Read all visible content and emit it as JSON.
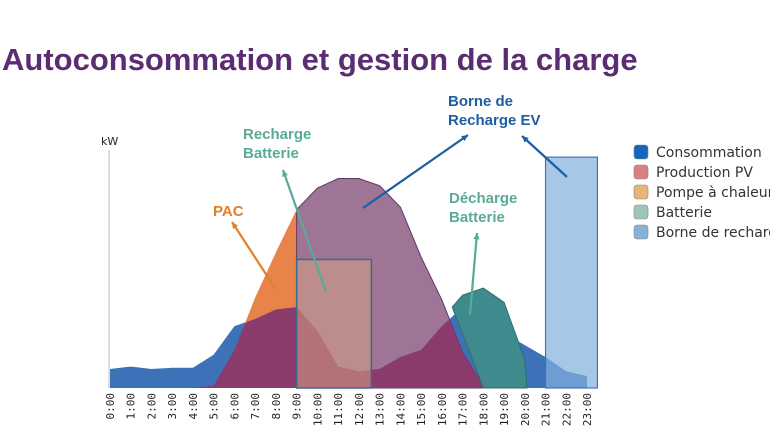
{
  "title": "Autoconsommation et gestion de la charge",
  "chart_data": {
    "type": "area",
    "ylabel": "kW",
    "xlabel": "",
    "ylim": [
      0,
      10
    ],
    "categories": [
      "0:00",
      "1:00",
      "2:00",
      "3:00",
      "4:00",
      "5:00",
      "6:00",
      "7:00",
      "8:00",
      "9:00",
      "10:00",
      "11:00",
      "12:00",
      "13:00",
      "14:00",
      "15:00",
      "16:00",
      "17:00",
      "18:00",
      "19:00",
      "20:00",
      "21:00",
      "22:00",
      "23:00"
    ],
    "series": [
      {
        "name": "Consommation",
        "color": "#3e72b8",
        "values": [
          0.8,
          0.9,
          0.8,
          0.85,
          0.85,
          1.4,
          2.6,
          2.9,
          3.3,
          3.4,
          2.4,
          0.9,
          0.7,
          0.8,
          1.3,
          1.6,
          2.6,
          3.4,
          3.2,
          2.3,
          1.8,
          1.3,
          0.7,
          0.5
        ]
      },
      {
        "name": "Production PV",
        "color": "#8b3a6c",
        "values": [
          0,
          0,
          0,
          0,
          0,
          0.1,
          1.6,
          3.8,
          5.7,
          7.5,
          8.4,
          8.8,
          8.8,
          8.5,
          7.6,
          5.5,
          3.7,
          1.5,
          0.1,
          0,
          0,
          0,
          0,
          0
        ]
      },
      {
        "name": "Pompe à chaleur",
        "color": "#e8834a",
        "range": [
          "6:30",
          "9:00"
        ]
      },
      {
        "name": "Batterie",
        "color": "#3f8a8c",
        "charge": {
          "from": 9,
          "to": 12.6,
          "value": 5.4
        },
        "discharge": {
          "x": [
            16.5,
            17,
            18,
            19,
            20
          ],
          "values": [
            3.4,
            3.9,
            4.2,
            3.6,
            1.2
          ]
        }
      },
      {
        "name": "Borne de recharge",
        "color": "#8fb6dc",
        "ev": {
          "from": 21,
          "to": 23.5,
          "value": 9.7
        }
      }
    ],
    "annotations": [
      {
        "text": [
          "PAC"
        ],
        "color": "#e0802a"
      },
      {
        "text": [
          "Recharge",
          "Batterie"
        ],
        "color": "#5aaa98"
      },
      {
        "text": [
          "Borne de",
          "Recharge EV"
        ],
        "color": "#1d5ea3"
      },
      {
        "text": [
          "Décharge",
          "Batterie"
        ],
        "color": "#5aaa98"
      }
    ],
    "legend": {
      "placement": "right",
      "items": [
        "Consommation",
        "Production PV",
        "Pompe à chaleur",
        "Batterie",
        "Borne de recharg"
      ]
    }
  }
}
